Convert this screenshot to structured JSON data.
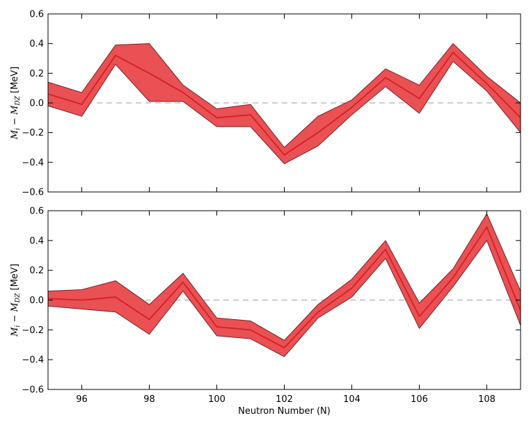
{
  "chart_data": [
    {
      "type": "line",
      "band": true,
      "xlabel": "",
      "ylabel": {
        "math": "M",
        "sub_i": "i",
        "minus": " − ",
        "sub_dz": "DZ",
        "unit": " [MeV]"
      },
      "xlim": [
        95,
        109
      ],
      "ylim": [
        -0.6,
        0.6
      ],
      "x_ticks": [
        96,
        98,
        100,
        102,
        104,
        106,
        108
      ],
      "x_tick_labels": [
        "",
        "",
        "",
        "",
        "",
        "",
        ""
      ],
      "y_ticks": [
        -0.6,
        -0.4,
        -0.2,
        0.0,
        0.2,
        0.4,
        0.6
      ],
      "y_tick_labels": [
        "−0.6",
        "−0.4",
        "−0.2",
        "0.0",
        "0.2",
        "0.4",
        "0.6"
      ],
      "reference_line": 0.0,
      "x": [
        95,
        96,
        97,
        98,
        99,
        100,
        101,
        102,
        103,
        104,
        105,
        106,
        107,
        108,
        109
      ],
      "mean": [
        0.06,
        -0.01,
        0.32,
        0.2,
        0.07,
        -0.1,
        -0.08,
        -0.35,
        -0.2,
        -0.03,
        0.17,
        0.03,
        0.34,
        0.13,
        -0.1
      ],
      "upper": [
        0.14,
        0.07,
        0.39,
        0.4,
        0.12,
        -0.04,
        -0.01,
        -0.3,
        -0.09,
        0.02,
        0.23,
        0.12,
        0.4,
        0.18,
        0.0
      ],
      "lower": [
        -0.02,
        -0.09,
        0.26,
        0.01,
        0.01,
        -0.16,
        -0.16,
        -0.41,
        -0.29,
        -0.08,
        0.11,
        -0.07,
        0.28,
        0.08,
        -0.2
      ]
    },
    {
      "type": "line",
      "band": true,
      "xlabel": "Neutron Number (N)",
      "ylabel": {
        "math": "M",
        "sub_i": "i",
        "minus": " − ",
        "sub_dz": "DZ",
        "unit": " [MeV]"
      },
      "xlim": [
        95,
        109
      ],
      "ylim": [
        -0.6,
        0.6
      ],
      "x_ticks": [
        96,
        98,
        100,
        102,
        104,
        106,
        108
      ],
      "x_tick_labels": [
        "96",
        "98",
        "100",
        "102",
        "104",
        "106",
        "108"
      ],
      "y_ticks": [
        -0.6,
        -0.4,
        -0.2,
        0.0,
        0.2,
        0.4,
        0.6
      ],
      "y_tick_labels": [
        "−0.6",
        "−0.4",
        "−0.2",
        "0.0",
        "0.2",
        "0.4",
        "0.6"
      ],
      "reference_line": 0.0,
      "x": [
        95,
        96,
        97,
        98,
        99,
        100,
        101,
        102,
        103,
        104,
        105,
        106,
        107,
        108,
        109
      ],
      "mean": [
        0.01,
        0.0,
        0.02,
        -0.13,
        0.12,
        -0.18,
        -0.2,
        -0.32,
        -0.08,
        0.08,
        0.34,
        -0.11,
        0.15,
        0.49,
        -0.07
      ],
      "upper": [
        0.06,
        0.07,
        0.13,
        -0.03,
        0.18,
        -0.12,
        -0.14,
        -0.27,
        -0.03,
        0.14,
        0.4,
        -0.02,
        0.21,
        0.58,
        0.06
      ],
      "lower": [
        -0.04,
        -0.06,
        -0.08,
        -0.23,
        0.06,
        -0.24,
        -0.26,
        -0.38,
        -0.12,
        0.02,
        0.28,
        -0.19,
        0.09,
        0.4,
        -0.17
      ]
    }
  ],
  "colors": {
    "band_fill": "#e8484b",
    "band_edge": "#7a1f22",
    "mean_line": "#d81e24",
    "reference_line": "#b0b0b0",
    "axes": "#000000"
  }
}
